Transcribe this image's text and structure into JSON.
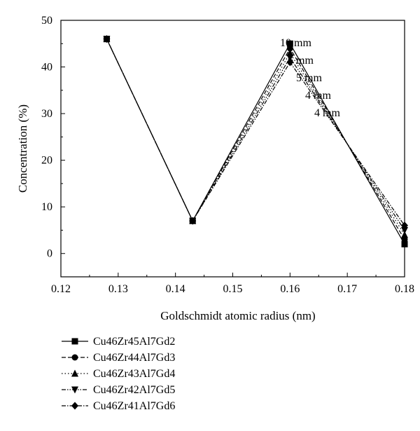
{
  "chart_data": {
    "type": "line",
    "title": "",
    "xlabel": "Goldschmidt atomic radius (nm)",
    "ylabel": "Concentration (%)",
    "xlim": [
      0.12,
      0.18
    ],
    "ylim": [
      -5,
      50
    ],
    "xticks": [
      0.12,
      0.13,
      0.14,
      0.15,
      0.16,
      0.17,
      0.18
    ],
    "xtick_labels": [
      "0.12",
      "0.13",
      "0.14",
      "0.15",
      "0.16",
      "0.17",
      "0.18"
    ],
    "yticks": [
      0,
      10,
      20,
      30,
      40,
      50
    ],
    "ytick_labels": [
      "0",
      "10",
      "20",
      "30",
      "40",
      "50"
    ],
    "x": [
      0.128,
      0.143,
      0.16,
      0.18
    ],
    "series": [
      {
        "name": "Cu46Zr45Al7Gd2",
        "values": [
          46,
          7,
          45,
          2
        ],
        "marker": "square",
        "dash": "solid"
      },
      {
        "name": "Cu46Zr44Al7Gd3",
        "values": [
          46,
          7,
          44,
          3
        ],
        "marker": "circle",
        "dash": "dashed"
      },
      {
        "name": "Cu46Zr43Al7Gd4",
        "values": [
          46,
          7,
          43,
          4
        ],
        "marker": "triangle-up",
        "dash": "dotted"
      },
      {
        "name": "Cu46Zr42Al7Gd5",
        "values": [
          46,
          7,
          42,
          5
        ],
        "marker": "triangle-down",
        "dash": "dash-dot-dot"
      },
      {
        "name": "Cu46Zr41Al7Gd6",
        "values": [
          46,
          7,
          41,
          6
        ],
        "marker": "diamond",
        "dash": "dash-dot"
      }
    ],
    "annotations": [
      "10 mm",
      "6 mm",
      "5 mm",
      "4 mm",
      "4 mm"
    ],
    "legend": "below",
    "grid": false
  }
}
